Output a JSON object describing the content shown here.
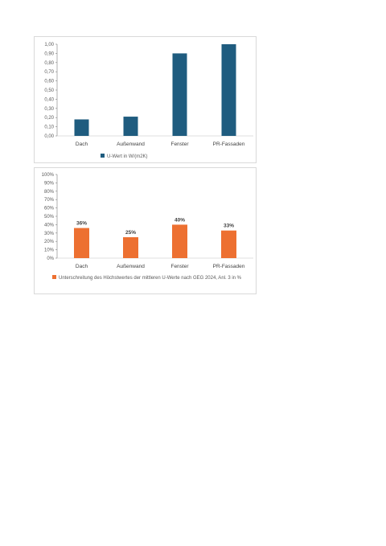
{
  "chart_data": [
    {
      "type": "bar",
      "categories": [
        "Dach",
        "Außenwand",
        "Fenster",
        "PR-Fassaden"
      ],
      "series": [
        {
          "name": "U-Wert in W/(m2K)",
          "values": [
            0.18,
            0.21,
            0.9,
            1.0
          ],
          "color": "#1f5c7f"
        }
      ],
      "yticks": [
        "1,00",
        "0,90",
        "0,80",
        "0,70",
        "0,60",
        "0,50",
        "0,40",
        "0,30",
        "0,20",
        "0,10",
        "0,00"
      ],
      "ylim": [
        0,
        1.0
      ],
      "grid": false,
      "legend": "bottom"
    },
    {
      "type": "bar",
      "categories": [
        "Dach",
        "Außenwand",
        "Fenster",
        "PR-Fassaden"
      ],
      "series": [
        {
          "name": "Unterschreitung des Höchstwertes der mittleren U-Werte nach GEG 2024, Anl. 3 in %",
          "values": [
            36,
            25,
            40,
            33
          ],
          "labels": [
            "36%",
            "25%",
            "40%",
            "33%"
          ],
          "color": "#ed7031"
        }
      ],
      "yticks": [
        "100%",
        "90%",
        "80%",
        "70%",
        "60%",
        "50%",
        "40%",
        "30%",
        "20%",
        "10%",
        "0%"
      ],
      "ylim": [
        0,
        100
      ],
      "grid": false,
      "legend": "bottom"
    }
  ]
}
